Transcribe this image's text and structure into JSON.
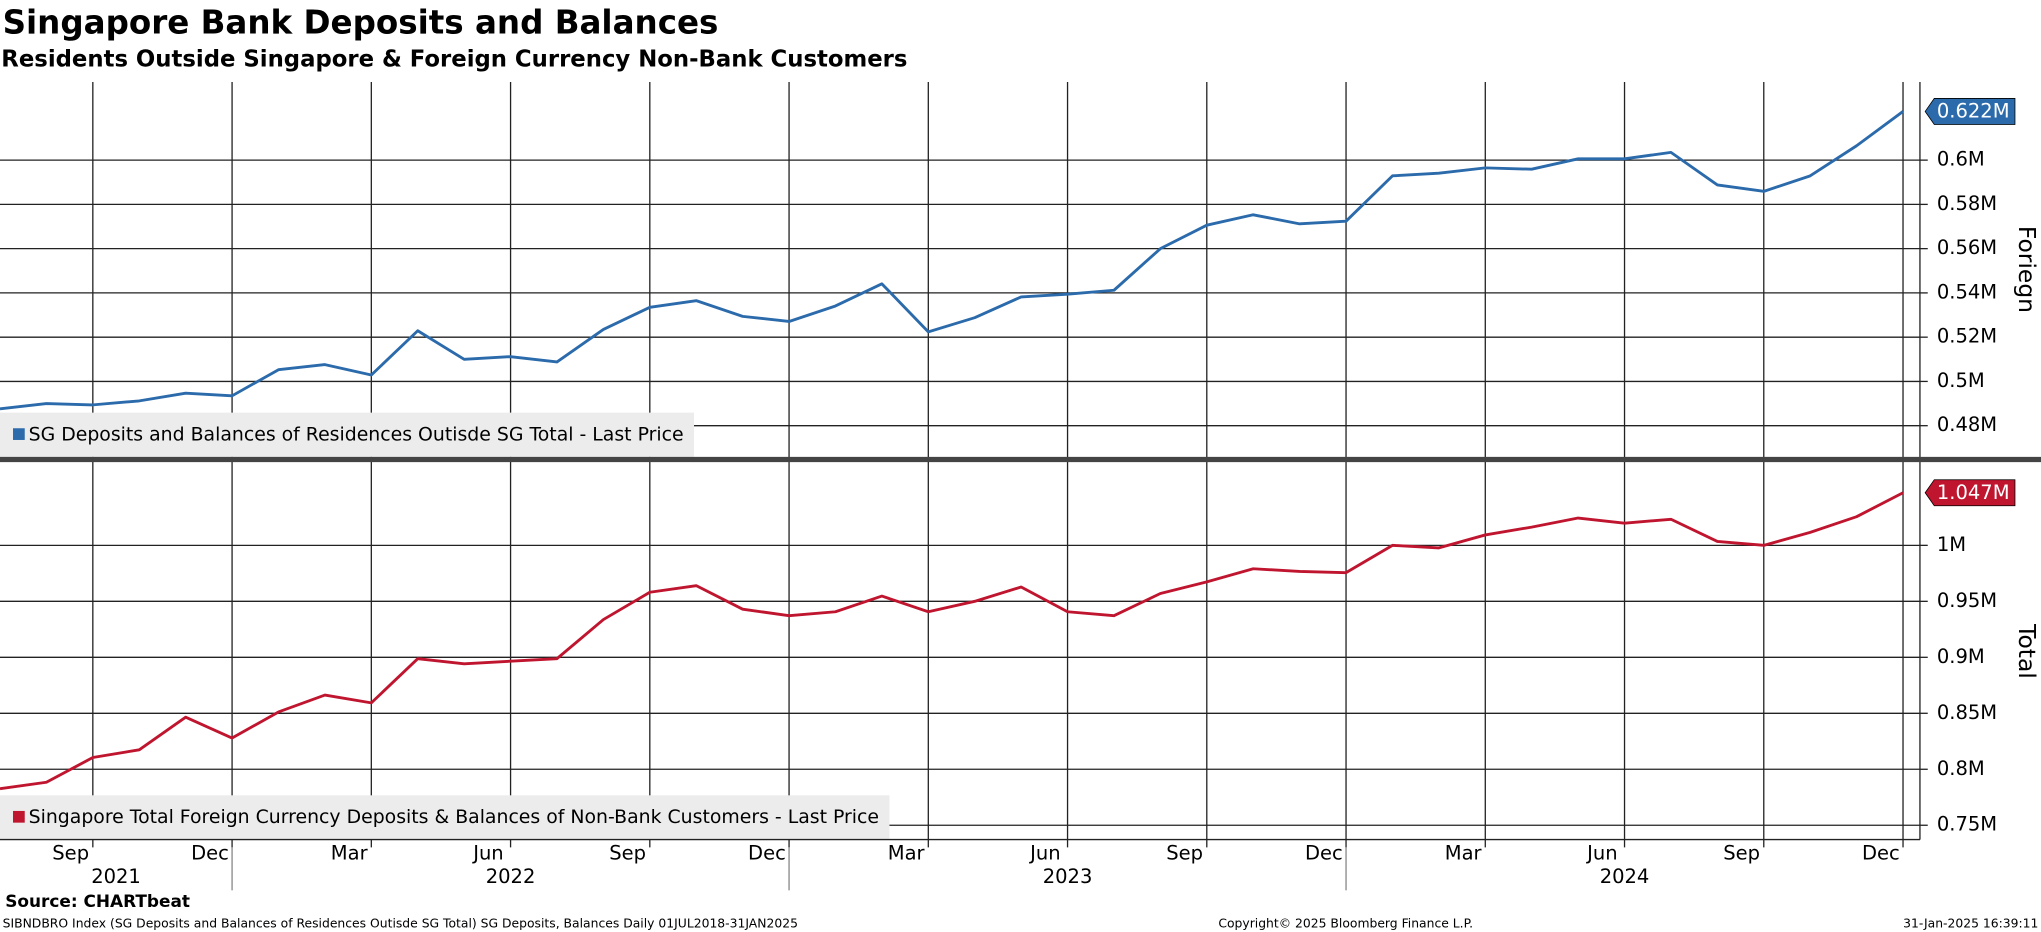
{
  "title": "Singapore Bank Deposits and Balances",
  "subtitle": "Residents Outside Singapore & Foreign Currency Non-Bank Customers",
  "x_axis": {
    "categories": [
      null,
      null,
      "Sep",
      null,
      null,
      "Dec",
      null,
      null,
      "Mar",
      null,
      null,
      "Jun",
      null,
      null,
      "Sep",
      null,
      null,
      "Dec",
      null,
      null,
      "Mar",
      null,
      null,
      "Jun",
      null,
      null,
      "Sep",
      null,
      null,
      "Dec",
      null,
      null,
      "Mar",
      null,
      null,
      "Jun",
      null,
      null,
      "Sep",
      null,
      null,
      "Dec"
    ],
    "groups": [
      "2021",
      "2022",
      "2023",
      "2024"
    ]
  },
  "chart_data": [
    {
      "type": "line",
      "y_label": "Foriegn",
      "grid": true,
      "ylim": [
        0.4659,
        0.6353
      ],
      "yticks": [
        {
          "value": 0.48,
          "label": "0.48M"
        },
        {
          "value": 0.5,
          "label": "0.5M"
        },
        {
          "value": 0.52,
          "label": "0.52M"
        },
        {
          "value": 0.54,
          "label": "0.54M"
        },
        {
          "value": 0.56,
          "label": "0.56M"
        },
        {
          "value": 0.58,
          "label": "0.58M"
        },
        {
          "value": 0.6,
          "label": "0.6M"
        }
      ],
      "series": [
        {
          "name": "SG Deposits and Balances of Residences Outisde SG Total - Last Price",
          "color": "#2b6aab",
          "values": [
            0.4876,
            0.49,
            0.4894,
            0.4912,
            0.4947,
            0.4935,
            0.5053,
            0.5076,
            0.5029,
            0.5229,
            0.51,
            0.5112,
            0.5088,
            0.5235,
            0.5335,
            0.5365,
            0.5294,
            0.5271,
            0.5341,
            0.5441,
            0.5224,
            0.5288,
            0.5382,
            0.5394,
            0.5412,
            0.56,
            0.5706,
            0.5753,
            0.5712,
            0.5724,
            0.5929,
            0.5941,
            0.5965,
            0.5959,
            0.6006,
            0.6006,
            0.6035,
            0.5888,
            0.5859,
            0.5929,
            0.6065,
            0.622
          ],
          "value_labels": [
            null,
            null,
            null,
            null,
            null,
            null,
            null,
            null,
            null,
            null,
            null,
            null,
            null,
            null,
            null,
            null,
            null,
            null,
            null,
            null,
            null,
            null,
            null,
            null,
            null,
            null,
            null,
            null,
            null,
            null,
            null,
            null,
            null,
            null,
            null,
            null,
            null,
            null,
            null,
            null,
            null,
            "0.622M"
          ]
        }
      ]
    },
    {
      "type": "line",
      "y_label": "Total",
      "grid": true,
      "ylim": [
        0.7372,
        1.0732
      ],
      "yticks": [
        {
          "value": 0.75,
          "label": "0.75M"
        },
        {
          "value": 0.8,
          "label": "0.8M"
        },
        {
          "value": 0.85,
          "label": "0.85M"
        },
        {
          "value": 0.9,
          "label": "0.9M"
        },
        {
          "value": 0.95,
          "label": "0.95M"
        },
        {
          "value": 1,
          "label": "1M"
        }
      ],
      "series": [
        {
          "name": "Singapore Total Foreign Currency Deposits & Balances of Non-Bank Customers - Last Price",
          "color": "#c0152f",
          "values": [
            0.7826,
            0.7884,
            0.8105,
            0.8174,
            0.8465,
            0.8279,
            0.8512,
            0.8663,
            0.8593,
            0.8988,
            0.8942,
            0.8965,
            0.8988,
            0.9337,
            0.9581,
            0.964,
            0.943,
            0.9372,
            0.9407,
            0.9547,
            0.9407,
            0.95,
            0.9628,
            0.9407,
            0.9372,
            0.957,
            0.9674,
            0.9791,
            0.9767,
            0.9756,
            1.0,
            0.9977,
            1.0093,
            1.0163,
            1.0244,
            1.0198,
            1.0233,
            1.0035,
            1.0,
            1.0116,
            1.0256,
            1.047
          ],
          "value_labels": [
            null,
            null,
            null,
            null,
            null,
            null,
            null,
            null,
            null,
            null,
            null,
            null,
            null,
            null,
            null,
            null,
            null,
            null,
            null,
            null,
            null,
            null,
            null,
            null,
            null,
            null,
            null,
            null,
            null,
            null,
            null,
            null,
            null,
            null,
            null,
            null,
            null,
            null,
            null,
            null,
            null,
            "1.047M"
          ]
        }
      ]
    }
  ],
  "footer": {
    "source": "Source: CHARTbeat",
    "ticker": "SIBNDBRO Index (SG Deposits and Balances of Residences Outisde SG Total) SG Deposits, Balances  Daily 01JUL2018-31JAN2025",
    "copyright": "Copyright© 2025 Bloomberg Finance L.P.",
    "timestamp": "31-Jan-2025 16:39:11"
  }
}
